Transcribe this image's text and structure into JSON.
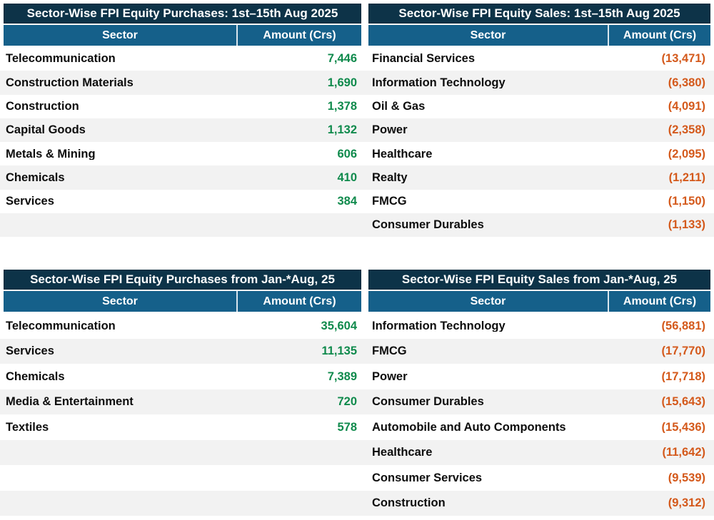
{
  "colors": {
    "title_bg": "#0d3348",
    "header_bg": "#15608a",
    "stripe_bg": "#f2f2f2",
    "purchase_amount": "#0f8a4c",
    "sale_amount": "#d4591b"
  },
  "groups": [
    {
      "left": {
        "title": "Sector-Wise FPI Equity Purchases: 1st–15th Aug 2025",
        "columns": {
          "sector": "Sector",
          "amount": "Amount (Crs)"
        },
        "rows": [
          {
            "sector": "Telecommunication",
            "amount": "7,446"
          },
          {
            "sector": "Construction Materials",
            "amount": "1,690"
          },
          {
            "sector": "Construction",
            "amount": "1,378"
          },
          {
            "sector": "Capital Goods",
            "amount": "1,132"
          },
          {
            "sector": "Metals & Mining",
            "amount": "606"
          },
          {
            "sector": "Chemicals",
            "amount": "410"
          },
          {
            "sector": "Services",
            "amount": "384"
          }
        ]
      },
      "right": {
        "title": "Sector-Wise FPI Equity Sales: 1st–15th Aug 2025",
        "columns": {
          "sector": "Sector",
          "amount": "Amount (Crs)"
        },
        "rows": [
          {
            "sector": "Financial Services",
            "amount": "(13,471)"
          },
          {
            "sector": "Information Technology",
            "amount": "(6,380)"
          },
          {
            "sector": "Oil & Gas",
            "amount": "(4,091)"
          },
          {
            "sector": "Power",
            "amount": "(2,358)"
          },
          {
            "sector": "Healthcare",
            "amount": "(2,095)"
          },
          {
            "sector": "Realty",
            "amount": "(1,211)"
          },
          {
            "sector": "FMCG",
            "amount": "(1,150)"
          },
          {
            "sector": "Consumer Durables",
            "amount": "(1,133)"
          }
        ]
      }
    },
    {
      "left": {
        "title": "Sector-Wise FPI Equity Purchases from Jan-*Aug, 25",
        "columns": {
          "sector": "Sector",
          "amount": "Amount (Crs)"
        },
        "rows": [
          {
            "sector": "Telecommunication",
            "amount": "35,604"
          },
          {
            "sector": "Services",
            "amount": "11,135"
          },
          {
            "sector": "Chemicals",
            "amount": "7,389"
          },
          {
            "sector": "Media & Entertainment",
            "amount": "720"
          },
          {
            "sector": "Textiles",
            "amount": "578"
          }
        ]
      },
      "right": {
        "title": "Sector-Wise FPI Equity Sales from Jan-*Aug, 25",
        "columns": {
          "sector": "Sector",
          "amount": "Amount (Crs)"
        },
        "rows": [
          {
            "sector": "Information Technology",
            "amount": "(56,881)"
          },
          {
            "sector": "FMCG",
            "amount": "(17,770)"
          },
          {
            "sector": "Power",
            "amount": "(17,718)"
          },
          {
            "sector": "Consumer Durables",
            "amount": "(15,643)"
          },
          {
            "sector": "Automobile and Auto Components",
            "amount": "(15,436)"
          },
          {
            "sector": "Healthcare",
            "amount": "(11,642)"
          },
          {
            "sector": "Consumer Services",
            "amount": "(9,539)"
          },
          {
            "sector": "Construction",
            "amount": "(9,312)"
          }
        ]
      }
    }
  ],
  "chart_data": [
    {
      "type": "table",
      "title": "Sector-Wise FPI Equity Purchases: 1st–15th Aug 2025",
      "columns": [
        "Sector",
        "Amount (Crs)"
      ],
      "rows": [
        [
          "Telecommunication",
          7446
        ],
        [
          "Construction Materials",
          1690
        ],
        [
          "Construction",
          1378
        ],
        [
          "Capital Goods",
          1132
        ],
        [
          "Metals & Mining",
          606
        ],
        [
          "Chemicals",
          410
        ],
        [
          "Services",
          384
        ]
      ]
    },
    {
      "type": "table",
      "title": "Sector-Wise FPI Equity Sales: 1st–15th Aug 2025",
      "columns": [
        "Sector",
        "Amount (Crs)"
      ],
      "rows": [
        [
          "Financial Services",
          -13471
        ],
        [
          "Information Technology",
          -6380
        ],
        [
          "Oil & Gas",
          -4091
        ],
        [
          "Power",
          -2358
        ],
        [
          "Healthcare",
          -2095
        ],
        [
          "Realty",
          -1211
        ],
        [
          "FMCG",
          -1150
        ],
        [
          "Consumer Durables",
          -1133
        ]
      ]
    },
    {
      "type": "table",
      "title": "Sector-Wise FPI Equity Purchases from Jan-*Aug, 25",
      "columns": [
        "Sector",
        "Amount (Crs)"
      ],
      "rows": [
        [
          "Telecommunication",
          35604
        ],
        [
          "Services",
          11135
        ],
        [
          "Chemicals",
          7389
        ],
        [
          "Media & Entertainment",
          720
        ],
        [
          "Textiles",
          578
        ]
      ]
    },
    {
      "type": "table",
      "title": "Sector-Wise FPI Equity Sales from Jan-*Aug, 25",
      "columns": [
        "Sector",
        "Amount (Crs)"
      ],
      "rows": [
        [
          "Information Technology",
          -56881
        ],
        [
          "FMCG",
          -17770
        ],
        [
          "Power",
          -17718
        ],
        [
          "Consumer Durables",
          -15643
        ],
        [
          "Automobile and Auto Components",
          -15436
        ],
        [
          "Healthcare",
          -11642
        ],
        [
          "Consumer Services",
          -9539
        ],
        [
          "Construction",
          -9312
        ]
      ]
    }
  ]
}
